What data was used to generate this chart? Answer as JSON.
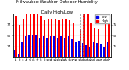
{
  "title": "Milwaukee Weather Outdoor Humidity",
  "subtitle": "Daily High/Low",
  "high_values": [
    95,
    75,
    90,
    99,
    99,
    99,
    99,
    95,
    85,
    90,
    88,
    88,
    85,
    88,
    88,
    85,
    80,
    70,
    65,
    99,
    99,
    80,
    68,
    65,
    75,
    80,
    82
  ],
  "low_values": [
    18,
    8,
    35,
    48,
    52,
    50,
    50,
    45,
    48,
    46,
    48,
    48,
    45,
    48,
    45,
    48,
    42,
    35,
    38,
    32,
    28,
    25,
    35,
    32,
    30,
    25,
    35
  ],
  "day_labels": [
    "1",
    "2",
    "3",
    "4",
    "5",
    "6",
    "7",
    "8",
    "9",
    "10",
    "11",
    "12",
    "13",
    "14",
    "15",
    "16",
    "17",
    "18",
    "19",
    "20",
    "21",
    "22",
    "23",
    "24",
    "25",
    "26",
    "27"
  ],
  "high_color": "#FF0000",
  "low_color": "#0000EE",
  "ylim": [
    0,
    100
  ],
  "yticks": [
    25,
    50,
    75
  ],
  "background_color": "#ffffff",
  "dashed_indices": [
    18,
    19
  ],
  "title_fontsize": 3.8,
  "tick_fontsize": 3.0,
  "legend_fontsize": 2.8
}
